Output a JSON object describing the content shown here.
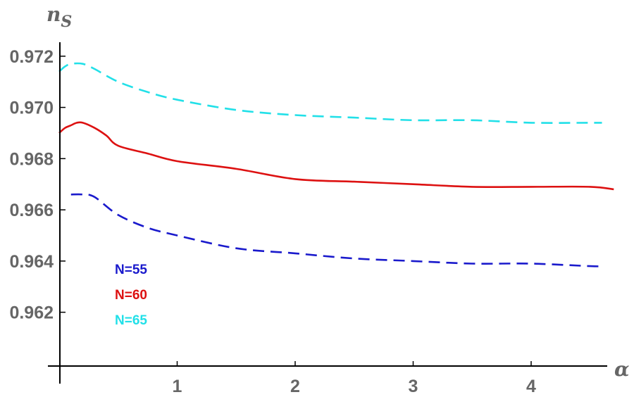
{
  "chart_data": {
    "type": "line",
    "xlabel": "α",
    "ylabel": "n_S",
    "ylabel_main": "n",
    "ylabel_sub": "S",
    "xlim": [
      0,
      4.72
    ],
    "ylim": [
      0.9599,
      0.9726
    ],
    "x_ticks": [
      1,
      2,
      3,
      4
    ],
    "x_tick_labels": [
      "1",
      "2",
      "3",
      "4"
    ],
    "y_ticks": [
      0.962,
      0.964,
      0.966,
      0.968,
      0.97,
      0.972
    ],
    "y_tick_labels": [
      "0.962",
      "0.964",
      "0.966",
      "0.968",
      "0.970",
      "0.972"
    ],
    "grid": false,
    "legend_placement": "bottom-left",
    "series": [
      {
        "name": "N=55",
        "color": "#1a1acc",
        "style": "dashed",
        "x": [
          0.1,
          0.2,
          0.3,
          0.5,
          0.75,
          1.0,
          1.5,
          2.0,
          2.5,
          3.0,
          3.5,
          4.0,
          4.5,
          4.6
        ],
        "y": [
          0.9666,
          0.9666,
          0.9665,
          0.9658,
          0.9653,
          0.965,
          0.9645,
          0.9643,
          0.9641,
          0.964,
          0.9639,
          0.9639,
          0.9638,
          0.9638
        ]
      },
      {
        "name": "N=60",
        "color": "#dd1111",
        "style": "solid",
        "x": [
          0.0,
          0.05,
          0.1,
          0.15,
          0.2,
          0.3,
          0.4,
          0.5,
          0.75,
          1.0,
          1.5,
          2.0,
          2.5,
          3.0,
          3.5,
          4.0,
          4.5,
          4.7
        ],
        "y": [
          0.969,
          0.9692,
          0.9693,
          0.9694,
          0.9694,
          0.9692,
          0.9689,
          0.9685,
          0.9682,
          0.9679,
          0.9676,
          0.9672,
          0.9671,
          0.967,
          0.9669,
          0.9669,
          0.9669,
          0.9668
        ]
      },
      {
        "name": "N=65",
        "color": "#22e0e8",
        "style": "dashed",
        "x": [
          0.0,
          0.05,
          0.1,
          0.2,
          0.3,
          0.5,
          0.75,
          1.0,
          1.5,
          2.0,
          2.5,
          3.0,
          3.5,
          4.0,
          4.5,
          4.6
        ],
        "y": [
          0.9714,
          0.9716,
          0.9717,
          0.9717,
          0.9715,
          0.971,
          0.9706,
          0.9703,
          0.9699,
          0.9697,
          0.9696,
          0.9695,
          0.9695,
          0.9694,
          0.9694,
          0.9694
        ]
      }
    ]
  }
}
